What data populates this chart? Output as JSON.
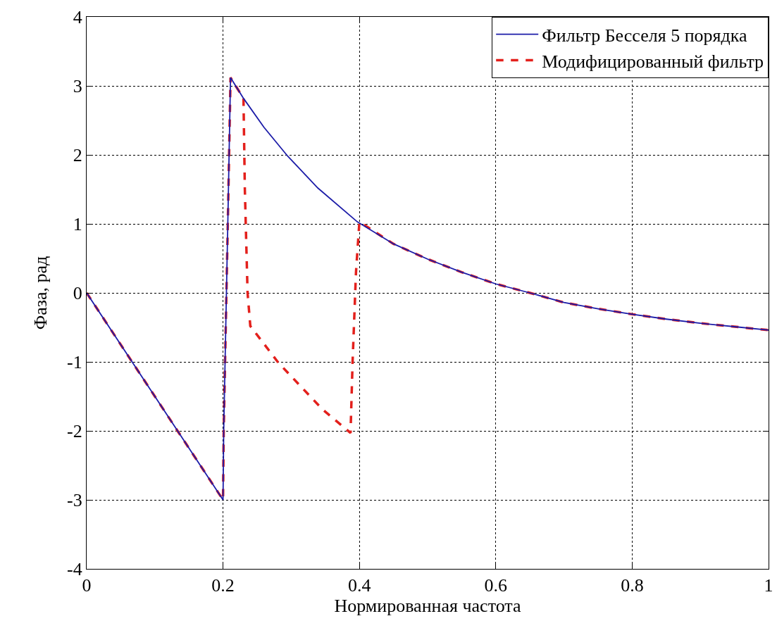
{
  "chart_data": {
    "type": "line",
    "xlabel": "Нормированная частота",
    "ylabel": "Фаза, рад",
    "xlim": [
      0,
      1
    ],
    "ylim": [
      -4,
      4
    ],
    "xticks": [
      0,
      0.2,
      0.4,
      0.6,
      0.8,
      1
    ],
    "yticks": [
      -4,
      -3,
      -2,
      -1,
      0,
      1,
      2,
      3,
      4
    ],
    "grid": true,
    "legend": "top right",
    "marker": "none",
    "series": [
      {
        "name": "Фильтр Бесселя 5 порядка",
        "color": "#1c1ca8",
        "line_style": "solid",
        "x": [
          0,
          0.1,
          0.2,
          0.201,
          0.204,
          0.207,
          0.211,
          0.23,
          0.26,
          0.295,
          0.339,
          0.397,
          0.45,
          0.5,
          0.55,
          0.6,
          0.65,
          0.7,
          0.75,
          0.8,
          0.85,
          0.9,
          0.95,
          1
        ],
        "values": [
          0,
          -1.5,
          -3,
          -2,
          -0.5,
          1,
          3.12,
          2.82,
          2.4,
          1.98,
          1.52,
          1.03,
          0.71,
          0.49,
          0.3,
          0.13,
          0,
          -0.14,
          -0.23,
          -0.31,
          -0.38,
          -0.44,
          -0.49,
          -0.54
        ]
      },
      {
        "name": "Модифицированный фильтр",
        "color": "#e3201c",
        "line_style": "dashed",
        "x": [
          0,
          0.1,
          0.2,
          0.201,
          0.204,
          0.207,
          0.211,
          0.23,
          0.232,
          0.236,
          0.24,
          0.281,
          0.346,
          0.387,
          0.39,
          0.395,
          0.4,
          0.45,
          0.5,
          0.55,
          0.6,
          0.65,
          0.7,
          0.75,
          0.8,
          0.85,
          0.9,
          0.95,
          1
        ],
        "values": [
          0,
          -1.5,
          -3,
          -2,
          -0.5,
          1,
          3.12,
          2.82,
          1.5,
          0,
          -0.48,
          -1.01,
          -1.69,
          -2.03,
          -1,
          0.3,
          1.03,
          0.71,
          0.49,
          0.3,
          0.13,
          0,
          -0.14,
          -0.23,
          -0.31,
          -0.38,
          -0.44,
          -0.49,
          -0.54
        ]
      }
    ]
  }
}
